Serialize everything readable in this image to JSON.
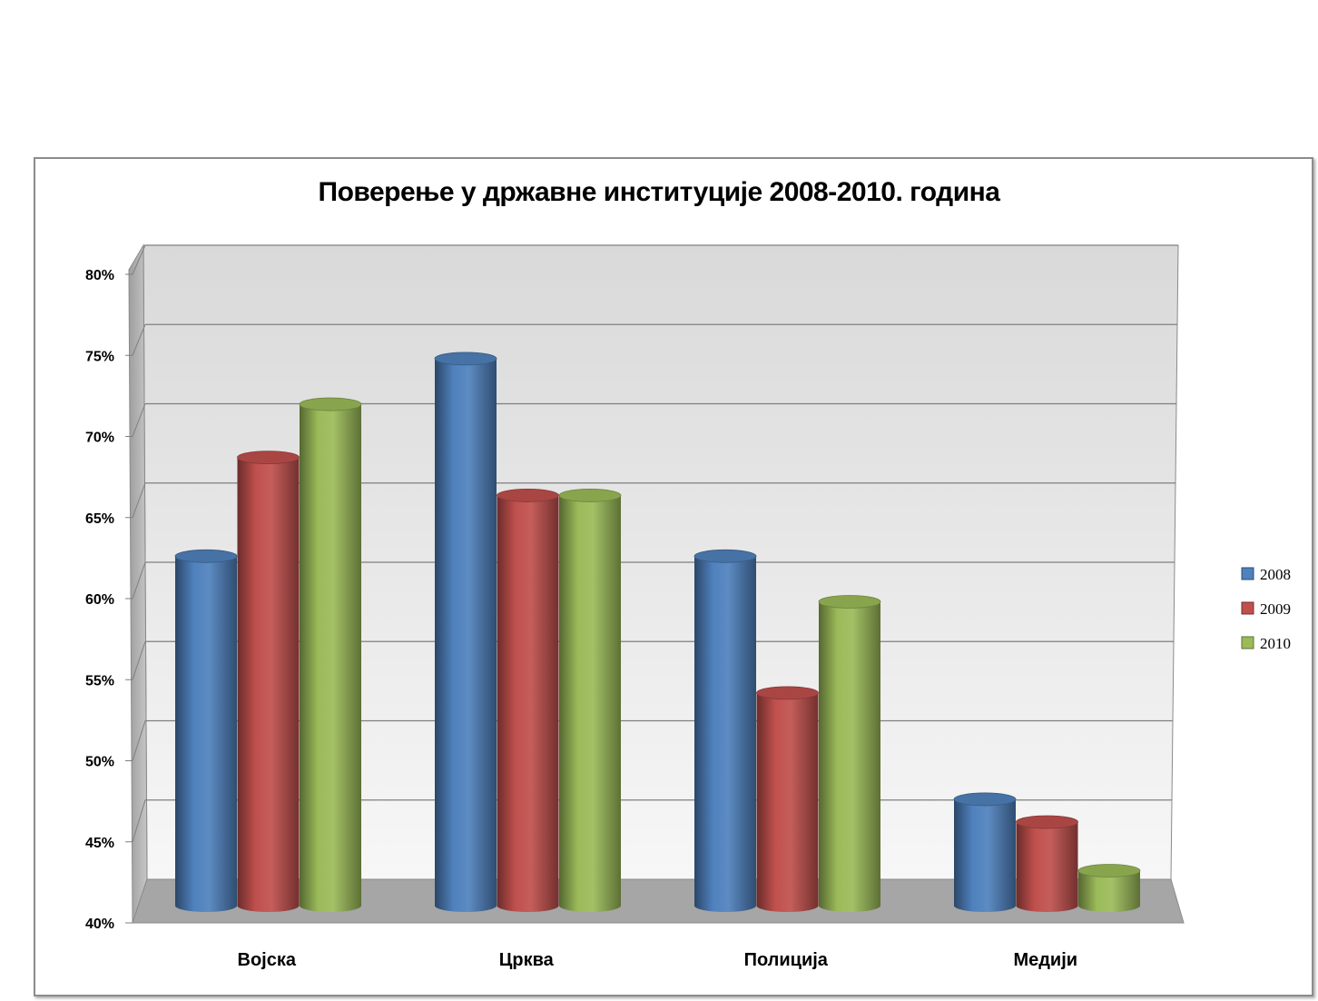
{
  "chart_data": {
    "type": "bar",
    "title": "Поверење у државне институције 2008-2010. година",
    "categories": [
      "Војска",
      "Црква",
      "Полиција",
      "Медији"
    ],
    "series": [
      {
        "name": "2008",
        "color": "#4f81bd",
        "values": [
          63,
          76,
          63,
          47
        ]
      },
      {
        "name": "2009",
        "color": "#c0504d",
        "values": [
          69.5,
          67,
          54,
          45.5
        ]
      },
      {
        "name": "2010",
        "color": "#9bbb59",
        "values": [
          73,
          67,
          60,
          42.3
        ]
      }
    ],
    "yticks": [
      "40%",
      "45%",
      "50%",
      "55%",
      "60%",
      "65%",
      "70%",
      "75%",
      "80%"
    ],
    "ylim": [
      40,
      80
    ],
    "xlabel": "",
    "ylabel": "",
    "grid": true,
    "legend": "right"
  }
}
